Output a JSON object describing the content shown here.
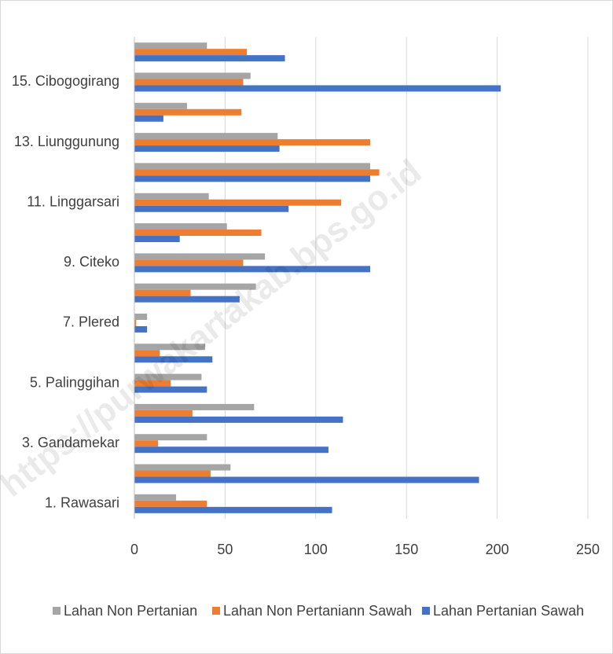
{
  "chart_data": {
    "type": "hbar",
    "categories": [
      "1. Rawasari",
      null,
      "3. Gandamekar",
      null,
      "5. Palinggihan",
      null,
      "7. Plered",
      null,
      "9. Citeko",
      null,
      "11. Linggarsari",
      null,
      "13. Liunggunung",
      null,
      "15. Cibogogirang",
      null
    ],
    "series": [
      {
        "name": "Lahan Non Pertanian",
        "color": "#a5a5a5",
        "values": [
          23,
          53,
          40,
          66,
          37,
          39,
          7,
          67,
          72,
          51,
          41,
          130,
          79,
          29,
          64,
          40
        ]
      },
      {
        "name": "Lahan Non Pertaniann Sawah",
        "color": "#ed7d31",
        "values": [
          40,
          42,
          13,
          32,
          20,
          14,
          1,
          31,
          60,
          70,
          114,
          135,
          130,
          59,
          60,
          62
        ]
      },
      {
        "name": "Lahan Pertanian Sawah",
        "color": "#4472c4",
        "values": [
          109,
          190,
          107,
          115,
          40,
          43,
          7,
          58,
          130,
          25,
          85,
          130,
          80,
          16,
          202,
          83
        ]
      }
    ],
    "xlim": [
      0,
      250
    ],
    "xticks": [
      0,
      50,
      100,
      150,
      200,
      250
    ],
    "grid": true,
    "legend": "bottom",
    "watermark": "https://purwakartakab.bps.go.id"
  }
}
